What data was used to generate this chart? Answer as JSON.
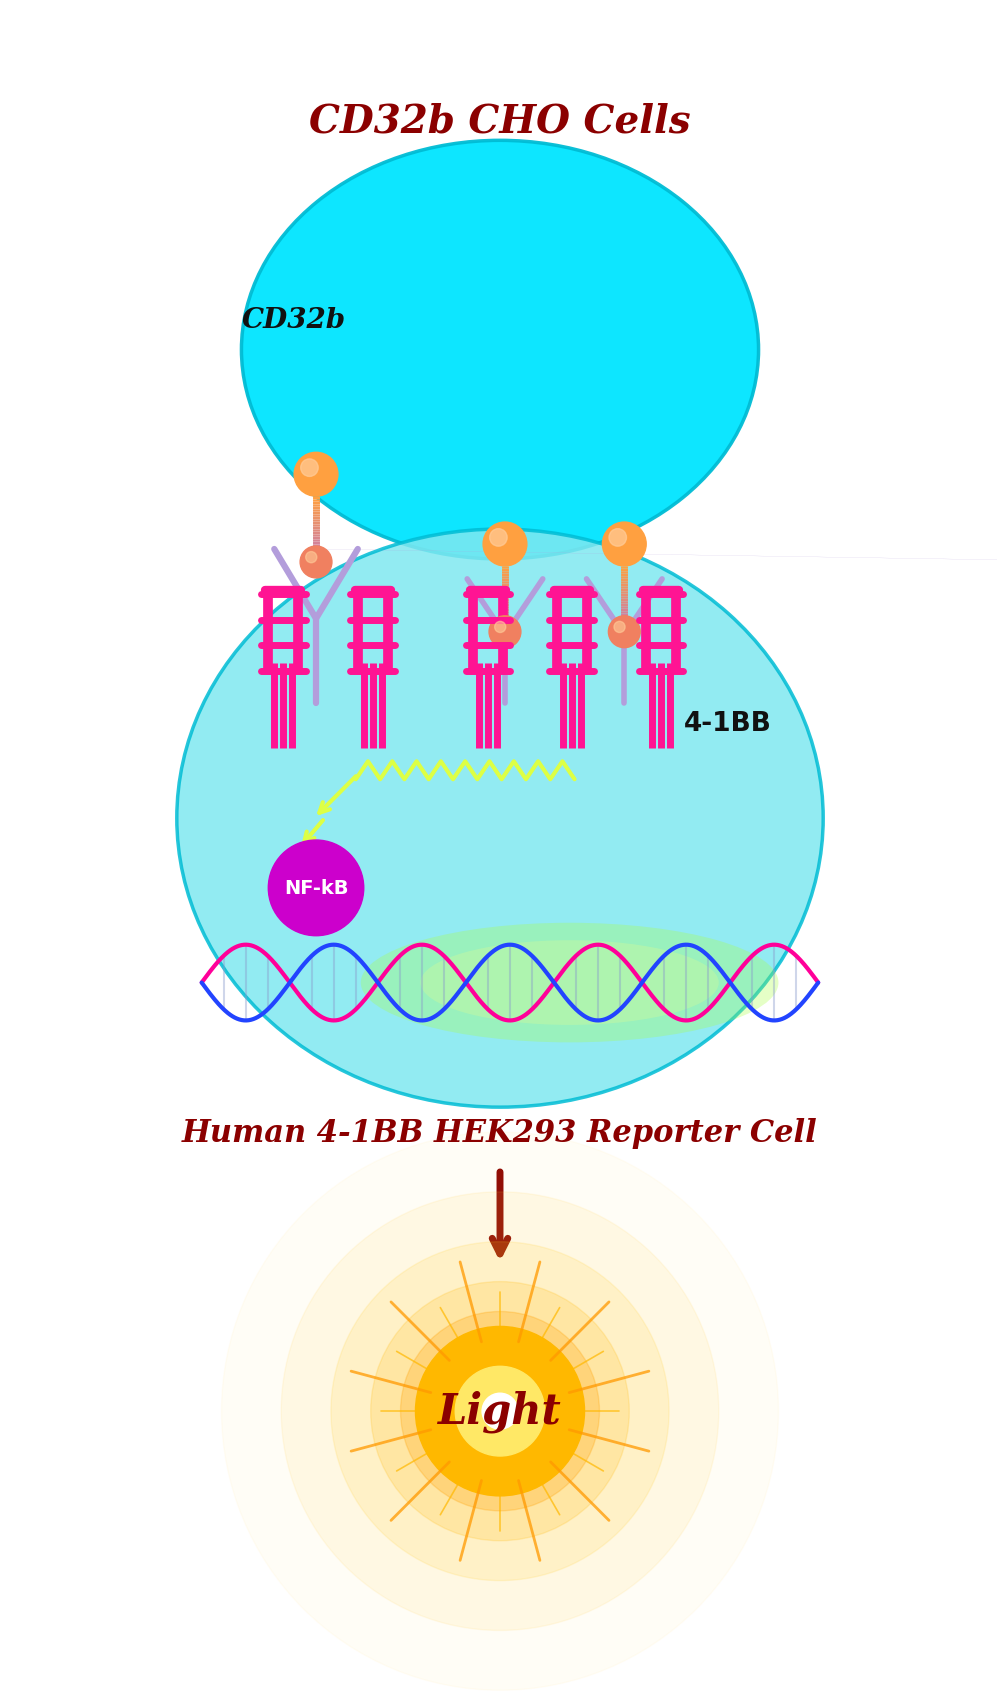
{
  "title_cho": "CD32b CHO Cells",
  "title_reporter": "Human 4-1BB HEK293 Reporter Cell",
  "label_cd32b": "CD32b",
  "label_41bb": "4-1BB",
  "label_nfkb": "NF-kB",
  "label_light": "Light",
  "title_color": "#8B0000",
  "bg_color": "#FFFFFF",
  "cho_cell_color": "#00E5FF",
  "hek_cell_color": "#7FE8F0",
  "cho_cell_edge": "#00BCD4",
  "antibody_color": "#B39DDB",
  "receptor_top_color": "#FFA040",
  "receptor_ball_color": "#F08060",
  "nfkb_color": "#CC00CC",
  "signal_color": "#DDFF44",
  "dna_color1": "#FF0099",
  "dna_color2": "#2244FF",
  "arrow_color": "#8B0000",
  "four1bb_color": "#FF1493",
  "membrane_color": "#80DDEE"
}
